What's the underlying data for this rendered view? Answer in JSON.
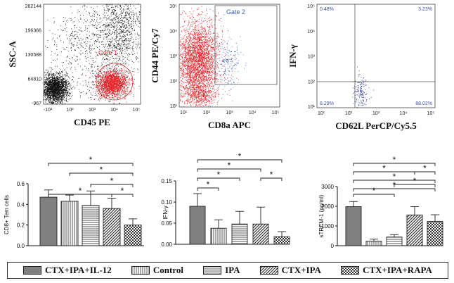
{
  "chart_data": [
    {
      "type": "scatter",
      "panel": "flow-cd45-ssc",
      "xlabel": "CD45 PE",
      "ylabel": "SSC-A",
      "xticks": [
        "-10³",
        "10³",
        "10³",
        "10⁴",
        "10⁵"
      ],
      "yticks": [
        "262144",
        "196366",
        "130588",
        "64810",
        "-967"
      ],
      "gate_label": "Gate 1"
    },
    {
      "type": "scatter",
      "panel": "flow-cd8-cd44",
      "xlabel": "CD8a APC",
      "ylabel": "CD44 PE/Cy7",
      "xticks": [
        "10¹",
        "10²",
        "10³",
        "10⁴",
        "10⁵"
      ],
      "yticks": [
        "10⁵",
        "10⁴",
        "10³",
        "10²",
        "10¹"
      ],
      "gate_label": "Gate 2"
    },
    {
      "type": "scatter",
      "panel": "flow-cd62l-ifng",
      "xlabel": "CD62L PerCP/Cy5.5",
      "ylabel": "IFN-γ",
      "xticks": [
        "10¹",
        "10²",
        "10³",
        "10⁴",
        "10⁵"
      ],
      "yticks": [
        "10⁵",
        "10⁴",
        "10³",
        "10²",
        "10¹"
      ],
      "quadrants": [
        "0.48%",
        "3.23%",
        "8.29%",
        "88.02%"
      ]
    },
    {
      "type": "bar",
      "panel": "cd8-tem",
      "ylabel": "CD8+ Tem cells",
      "categories": [
        "CTX+IPA+IL-12",
        "Control",
        "IPA",
        "CTX+IPA",
        "CTX+IPA+RAPA"
      ],
      "values": [
        0.47,
        0.43,
        0.39,
        0.36,
        0.2
      ],
      "errors": [
        0.07,
        0.06,
        0.14,
        0.1,
        0.06
      ],
      "ylim": [
        0,
        0.6
      ],
      "yticks": [
        "0.0",
        "0.2",
        "0.4",
        "0.6"
      ],
      "significance": [
        "*",
        "*",
        "*",
        "*",
        "*"
      ]
    },
    {
      "type": "bar",
      "panel": "ifn-gamma",
      "ylabel": "IFN-γ",
      "categories": [
        "CTX+IPA+IL-12",
        "Control",
        "IPA",
        "CTX+IPA",
        "CTX+IPA+RAPA"
      ],
      "values": [
        0.09,
        0.038,
        0.048,
        0.048,
        0.018
      ],
      "errors": [
        0.03,
        0.02,
        0.03,
        0.04,
        0.012
      ],
      "ylim": [
        0,
        0.15
      ],
      "yticks": [
        "0.00",
        "0.05",
        "0.10",
        "0.15"
      ],
      "significance": [
        "*",
        "*",
        "*",
        "*",
        "*"
      ]
    },
    {
      "type": "bar",
      "panel": "strem1",
      "ylabel": "sTREM-1 (pg/ml)",
      "categories": [
        "CTX+IPA+IL-12",
        "Control",
        "IPA",
        "CTX+IPA",
        "CTX+IPA+RAPA"
      ],
      "values": [
        1980,
        230,
        440,
        1560,
        1230
      ],
      "errors": [
        260,
        100,
        120,
        420,
        340
      ],
      "ylim": [
        0,
        3000
      ],
      "yticks": [
        "0",
        "1000",
        "2000",
        "3000"
      ],
      "significance": [
        "*",
        "*",
        "*",
        "*",
        "*",
        "*",
        "*"
      ]
    }
  ],
  "legend": {
    "items": [
      {
        "label": "CTX+IPA+IL-12",
        "pattern": "solid"
      },
      {
        "label": "Control",
        "pattern": "vertical"
      },
      {
        "label": "IPA",
        "pattern": "horizontal"
      },
      {
        "label": "CTX+IPA",
        "pattern": "diagonal"
      },
      {
        "label": "CTX+IPA+RAPA",
        "pattern": "checker"
      }
    ]
  },
  "colors": {
    "gated": "#e8262b",
    "dots": "#111111",
    "gate_line": "#d3333a",
    "gate2_text": "#3a5bbd",
    "quad_text": "#3a4ea6",
    "bar_fill": "#808080"
  }
}
